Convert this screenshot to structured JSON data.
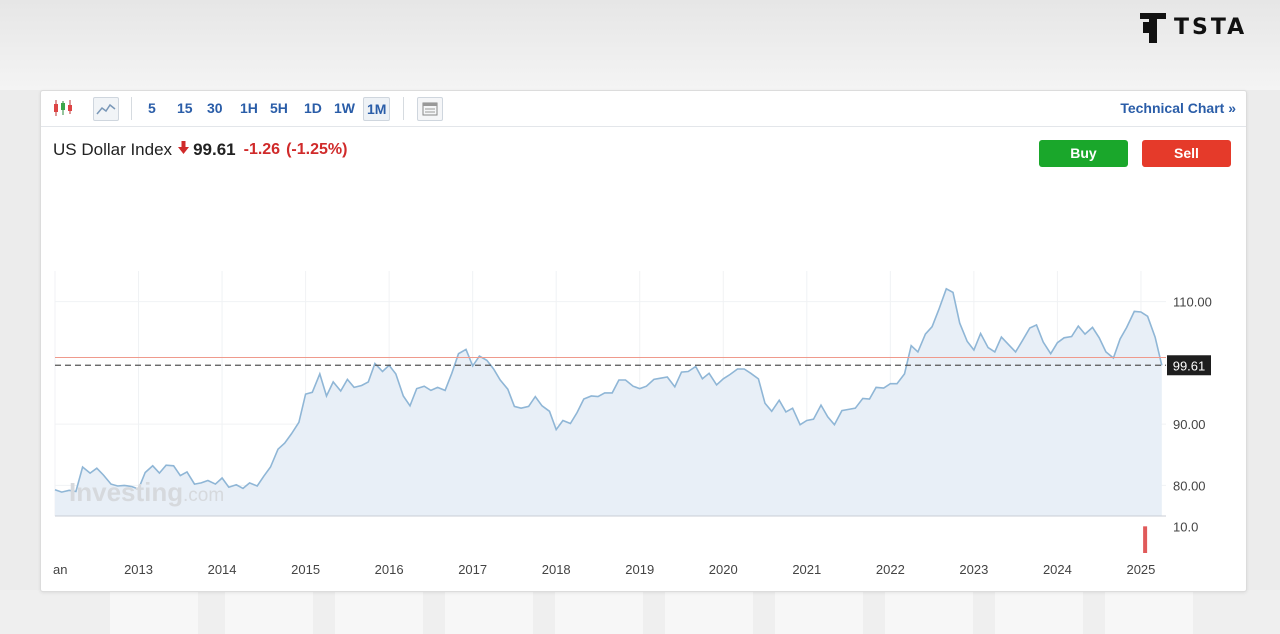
{
  "brand": {
    "logo_text": "TSTA"
  },
  "toolbar": {
    "timeframes": [
      "5",
      "15",
      "30",
      "1H",
      "5H",
      "1D",
      "1W",
      "1M"
    ],
    "active_timeframe": "1M",
    "technical_chart_label": "Technical Chart »"
  },
  "instrument": {
    "name": "US Dollar Index",
    "price": "99.61",
    "change": "-1.26",
    "change_pct": "(-1.25%)"
  },
  "buttons": {
    "buy": "Buy",
    "sell": "Sell"
  },
  "watermark": {
    "brand": "Investing",
    "suffix": ".com"
  },
  "colors": {
    "link": "#2a5da8",
    "down": "#d02a2a",
    "buy": "#1aa72b",
    "sell": "#e53a2a",
    "line": "#8fb6d6",
    "fill": "#e8eff7",
    "ref_line": "#ef9a8c"
  },
  "chart_data": {
    "type": "area",
    "x": [
      2012.0,
      2012.08,
      2012.17,
      2012.25,
      2012.33,
      2012.42,
      2012.5,
      2012.58,
      2012.67,
      2012.75,
      2012.83,
      2012.92,
      2013.0,
      2013.08,
      2013.17,
      2013.25,
      2013.33,
      2013.42,
      2013.5,
      2013.58,
      2013.67,
      2013.75,
      2013.83,
      2013.92,
      2014.0,
      2014.08,
      2014.17,
      2014.25,
      2014.33,
      2014.42,
      2014.5,
      2014.58,
      2014.67,
      2014.75,
      2014.83,
      2014.92,
      2015.0,
      2015.08,
      2015.17,
      2015.25,
      2015.33,
      2015.42,
      2015.5,
      2015.58,
      2015.67,
      2015.75,
      2015.83,
      2015.92,
      2016.0,
      2016.08,
      2016.17,
      2016.25,
      2016.33,
      2016.42,
      2016.5,
      2016.58,
      2016.67,
      2016.75,
      2016.83,
      2016.92,
      2017.0,
      2017.08,
      2017.17,
      2017.25,
      2017.33,
      2017.42,
      2017.5,
      2017.58,
      2017.67,
      2017.75,
      2017.83,
      2017.92,
      2018.0,
      2018.08,
      2018.17,
      2018.25,
      2018.33,
      2018.42,
      2018.5,
      2018.58,
      2018.67,
      2018.75,
      2018.83,
      2018.92,
      2019.0,
      2019.08,
      2019.17,
      2019.25,
      2019.33,
      2019.42,
      2019.5,
      2019.58,
      2019.67,
      2019.75,
      2019.83,
      2019.92,
      2020.0,
      2020.08,
      2020.17,
      2020.25,
      2020.33,
      2020.42,
      2020.5,
      2020.58,
      2020.67,
      2020.75,
      2020.83,
      2020.92,
      2021.0,
      2021.08,
      2021.17,
      2021.25,
      2021.33,
      2021.42,
      2021.5,
      2021.58,
      2021.67,
      2021.75,
      2021.83,
      2021.92,
      2022.0,
      2022.08,
      2022.17,
      2022.25,
      2022.33,
      2022.42,
      2022.5,
      2022.58,
      2022.67,
      2022.75,
      2022.83,
      2022.92,
      2023.0,
      2023.08,
      2023.17,
      2023.25,
      2023.33,
      2023.42,
      2023.5,
      2023.58,
      2023.67,
      2023.75,
      2023.83,
      2023.92,
      2024.0,
      2024.08,
      2024.17,
      2024.25,
      2024.33,
      2024.42,
      2024.5,
      2024.58,
      2024.67,
      2024.75,
      2024.83,
      2024.92,
      2025.0,
      2025.08,
      2025.17,
      2025.25
    ],
    "values": [
      79.3,
      78.9,
      79.2,
      79.0,
      83.0,
      82.0,
      82.8,
      81.7,
      80.2,
      79.9,
      80.0,
      79.8,
      79.4,
      82.1,
      83.2,
      82.0,
      83.3,
      83.2,
      81.6,
      82.2,
      80.2,
      80.4,
      80.8,
      80.2,
      81.2,
      79.7,
      80.1,
      79.5,
      80.4,
      79.9,
      81.5,
      83.0,
      85.9,
      86.9,
      88.4,
      90.3,
      94.9,
      95.2,
      98.2,
      94.6,
      96.9,
      95.4,
      97.3,
      96.0,
      96.3,
      96.9,
      99.9,
      98.6,
      99.6,
      98.2,
      94.6,
      93.0,
      95.8,
      96.2,
      95.5,
      96.0,
      95.5,
      98.3,
      101.5,
      102.2,
      99.5,
      101.1,
      100.4,
      99.0,
      97.2,
      95.7,
      92.9,
      92.6,
      92.9,
      94.5,
      93.0,
      92.1,
      89.1,
      90.6,
      90.1,
      91.9,
      94.1,
      94.6,
      94.5,
      95.1,
      95.1,
      97.2,
      97.2,
      96.2,
      95.8,
      96.2,
      97.3,
      97.5,
      97.7,
      96.1,
      98.5,
      98.6,
      99.4,
      97.4,
      98.3,
      96.4,
      97.4,
      98.1,
      99.0,
      99.0,
      98.3,
      97.4,
      93.4,
      92.1,
      93.9,
      92.0,
      92.6,
      89.9,
      90.6,
      90.8,
      93.1,
      91.2,
      89.9,
      92.2,
      92.4,
      92.6,
      94.2,
      94.1,
      96.0,
      95.9,
      96.6,
      96.6,
      98.2,
      102.8,
      101.8,
      104.7,
      105.9,
      108.7,
      112.1,
      111.5,
      106.5,
      103.5,
      102.1,
      104.8,
      102.5,
      101.8,
      104.2,
      102.9,
      101.8,
      103.6,
      105.7,
      106.2,
      103.4,
      101.5,
      103.3,
      104.1,
      104.3,
      106.0,
      104.7,
      105.8,
      104.1,
      101.8,
      100.8,
      103.9,
      105.8,
      108.4,
      108.3,
      107.6,
      104.2,
      99.61
    ],
    "xticks": [
      2013,
      2014,
      2015,
      2016,
      2017,
      2018,
      2019,
      2020,
      2021,
      2022,
      2023,
      2024,
      2025
    ],
    "xlabels": [
      "2013",
      "2014",
      "2015",
      "2016",
      "2017",
      "2018",
      "2019",
      "2020",
      "2021",
      "2022",
      "2023",
      "2024",
      "2025"
    ],
    "first_xlabel": "an",
    "yticks": [
      80,
      90,
      110
    ],
    "ylabels": [
      "80.00",
      "90.00",
      "110.00"
    ],
    "ylim": [
      75,
      115
    ],
    "last_price": 99.61,
    "last_price_label": "99.61",
    "ref_line": 100.87,
    "volume": {
      "label": "10.0",
      "ylim": [
        0,
        12
      ],
      "x": 2025.05,
      "value": 10
    },
    "grid": true,
    "legend": "none"
  }
}
